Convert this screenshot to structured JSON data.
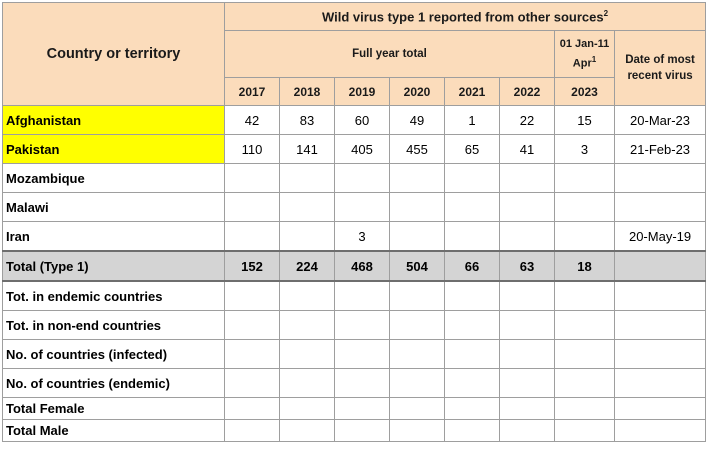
{
  "header": {
    "country_label": "Country or territory",
    "title": "Wild virus type 1 reported from other sources",
    "title_sup": "2",
    "full_year_label": "Full year total",
    "period_label": "01 Jan-11 Apr",
    "period_sup": "1",
    "date_label": "Date of most recent virus",
    "years": [
      "2017",
      "2018",
      "2019",
      "2020",
      "2021",
      "2022",
      "2023"
    ]
  },
  "rows": [
    {
      "name": "Afghanistan",
      "highlight": true,
      "values": [
        "42",
        "83",
        "60",
        "49",
        "1",
        "22",
        "15"
      ],
      "date": "20-Mar-23"
    },
    {
      "name": "Pakistan",
      "highlight": true,
      "values": [
        "110",
        "141",
        "405",
        "455",
        "65",
        "41",
        "3"
      ],
      "date": "21-Feb-23"
    },
    {
      "name": "Mozambique",
      "highlight": false,
      "values": [
        "",
        "",
        "",
        "",
        "",
        "",
        ""
      ],
      "date": ""
    },
    {
      "name": "Malawi",
      "highlight": false,
      "values": [
        "",
        "",
        "",
        "",
        "",
        "",
        ""
      ],
      "date": ""
    },
    {
      "name": "Iran",
      "highlight": false,
      "values": [
        "",
        "",
        "3",
        "",
        "",
        "",
        ""
      ],
      "date": "20-May-19"
    }
  ],
  "total": {
    "name": "Total (Type 1)",
    "values": [
      "152",
      "224",
      "468",
      "504",
      "66",
      "63",
      "18"
    ],
    "date": ""
  },
  "summary_rows": [
    "Tot. in endemic countries",
    "Tot. in non-end countries",
    "No. of countries (infected)",
    "No. of countries (endemic)",
    "Total Female",
    "Total Male"
  ],
  "colors": {
    "header_bg": "#fbdcbb",
    "highlight": "#ffff00",
    "total_bg": "#d4d4d4"
  }
}
